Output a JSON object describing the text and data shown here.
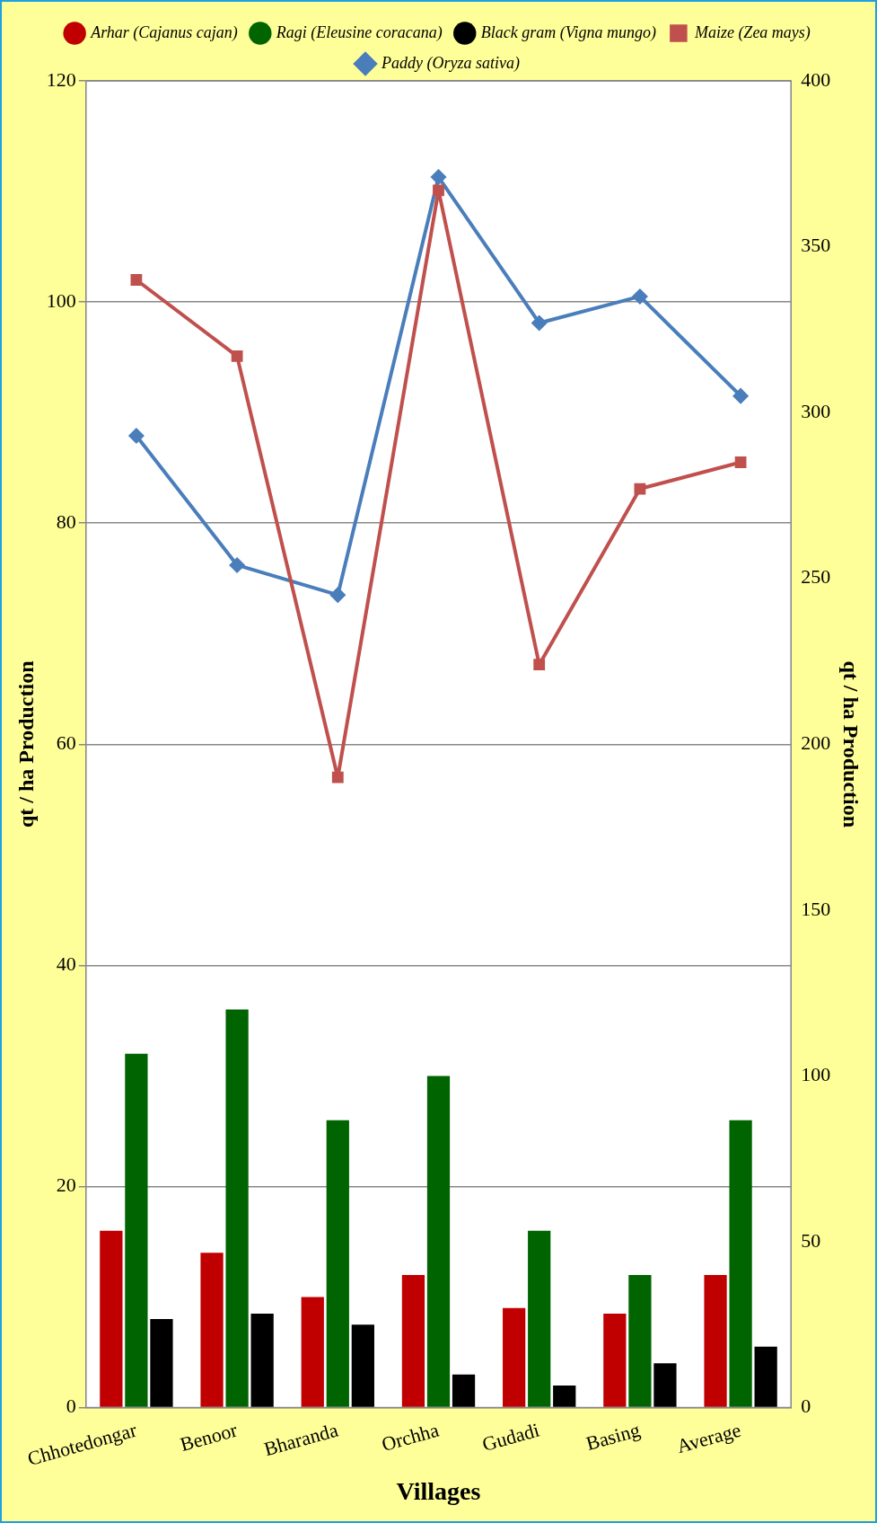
{
  "chart_data": {
    "type": "bar",
    "xlabel": "Villages",
    "ylabel": "qt / ha Production",
    "y2label": "qt / ha Production",
    "categories": [
      "Chhotedongar",
      "Benoor",
      "Bharanda",
      "Orchha",
      "Gudadi",
      "Basing",
      "Average"
    ],
    "series": [
      {
        "name": "Arhar (Cajanus cajan)",
        "color": "#c00000",
        "values": [
          16,
          14,
          10,
          12,
          9,
          8.5,
          12
        ]
      },
      {
        "name": "Ragi (Eleusine coracana)",
        "color": "#006400",
        "values": [
          32,
          36,
          26,
          30,
          16,
          12,
          26
        ]
      },
      {
        "name": "Black gram (Vigna mungo)",
        "color": "#000000",
        "values": [
          8,
          8.5,
          7.5,
          3,
          2,
          4,
          5.5
        ]
      },
      {
        "name": "Maize (Zea mays)",
        "type": "line",
        "axis": "y2",
        "color": "#c0504d",
        "marker": "square",
        "values": [
          340,
          317,
          190,
          367,
          224,
          277,
          285
        ]
      },
      {
        "name": "Paddy (Oryza sativa)",
        "type": "line",
        "axis": "y2",
        "color": "#4a7ebb",
        "marker": "diamond",
        "values": [
          293,
          254,
          245,
          371,
          327,
          335,
          305
        ]
      }
    ],
    "ylim": [
      0,
      120
    ],
    "yticks": [
      0,
      20,
      40,
      60,
      80,
      100,
      120
    ],
    "y2lim": [
      0,
      400
    ],
    "y2ticks": [
      0,
      50,
      100,
      150,
      200,
      250,
      300,
      350,
      400
    ],
    "grid": "y",
    "legend": "top"
  }
}
